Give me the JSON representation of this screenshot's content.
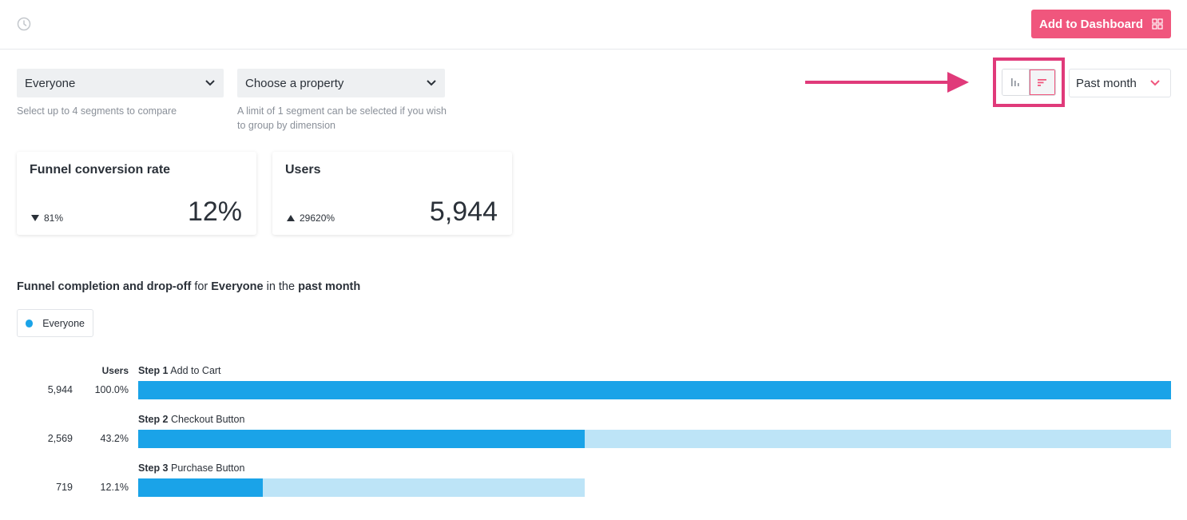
{
  "header": {
    "add_to_dashboard": "Add to Dashboard"
  },
  "filters": {
    "segment": {
      "value": "Everyone",
      "help": "Select up to 4 segments to compare"
    },
    "property": {
      "value": "Choose a property",
      "help": "A limit of 1 segment can be selected if you wish to group by dimension"
    },
    "period": "Past month"
  },
  "cards": [
    {
      "title": "Funnel conversion rate",
      "change": "81%",
      "direction": "down",
      "value": "12%"
    },
    {
      "title": "Users",
      "change": "29620%",
      "direction": "up",
      "value": "5,944"
    }
  ],
  "chart": {
    "title_prefix": "Funnel completion and drop-off",
    "title_for": "for",
    "title_segment": "Everyone",
    "title_in": "in the",
    "title_period": "past month",
    "legend": "Everyone",
    "users_header": "Users"
  },
  "chart_data": {
    "type": "bar",
    "orientation": "horizontal",
    "series": [
      {
        "name": "Everyone",
        "color": "#1aa3e8"
      }
    ],
    "steps": [
      {
        "step": "Step 1",
        "label": "Add to Cart",
        "users": "5,944",
        "pct": "100.0%",
        "value": 5944,
        "prev": 5944
      },
      {
        "step": "Step 2",
        "label": "Checkout Button",
        "users": "2,569",
        "pct": "43.2%",
        "value": 2569,
        "prev": 5944
      },
      {
        "step": "Step 3",
        "label": "Purchase Button",
        "users": "719",
        "pct": "12.1%",
        "value": 719,
        "prev": 2569
      }
    ],
    "xlim": [
      0,
      5944
    ]
  },
  "colors": {
    "accent": "#f0567d",
    "highlight": "#e03a7a",
    "bar": "#1aa3e8",
    "bar_dropoff": "#bde4f7"
  }
}
